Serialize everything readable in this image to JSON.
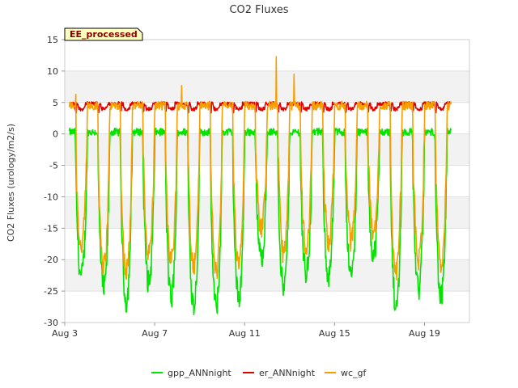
{
  "chart_data": {
    "type": "line",
    "title": "CO2 Fluxes",
    "ylabel": "CO2 Fluxes (urology/m2/s)",
    "xlabel": "",
    "badge": "EE_processed",
    "xlim": [
      3.0,
      21.0
    ],
    "ylim": [
      -30,
      15
    ],
    "yticks": [
      15,
      10,
      5,
      0,
      -5,
      -10,
      -15,
      -20,
      -25,
      -30
    ],
    "xticks": [
      {
        "value": 3,
        "label": "Aug 3"
      },
      {
        "value": 7,
        "label": "Aug 7"
      },
      {
        "value": 11,
        "label": "Aug 11"
      },
      {
        "value": 15,
        "label": "Aug 15"
      },
      {
        "value": 19,
        "label": "Aug 19"
      }
    ],
    "series": [
      {
        "name": "gpp_ANNnight",
        "color": "#00e400",
        "daily_min": [
          -23,
          -25,
          -27,
          -24,
          -26.5,
          -27.5,
          -28,
          -26.5,
          -20,
          -25,
          -22.5,
          -23,
          -23,
          -19.5,
          -28,
          -25,
          -26.5
        ],
        "night_value": 0.3
      },
      {
        "name": "er_ANNnight",
        "color": "#e00000",
        "base": 4.8,
        "daily_dip": 3.4
      },
      {
        "name": "wc_gf",
        "color": "#f5a000",
        "daily_min": [
          -18,
          -21,
          -22,
          -19,
          -20,
          -21,
          -22,
          -21,
          -15,
          -19,
          -18,
          -17,
          -17,
          -16,
          -22,
          -20,
          -21
        ],
        "spikes": [
          {
            "x": 3.5,
            "y": 6.3
          },
          {
            "x": 8.2,
            "y": 7.7
          },
          {
            "x": 12.4,
            "y": 12.3
          },
          {
            "x": 13.2,
            "y": 9.5
          }
        ],
        "night_value": 4.5
      }
    ],
    "legend": [
      "gpp_ANNnight",
      "er_ANNnight",
      "wc_gf"
    ],
    "legend_position": "bottom-center"
  }
}
